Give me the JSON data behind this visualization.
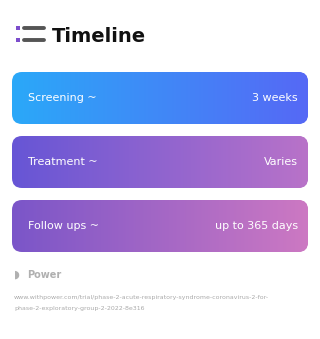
{
  "title": "Timeline",
  "background_color": "#ffffff",
  "rows": [
    {
      "left_label": "Screening ~",
      "right_label": "3 weeks",
      "color_left": "#2aa8f8",
      "color_right": "#5568f5"
    },
    {
      "left_label": "Treatment ~",
      "right_label": "Varies",
      "color_left": "#6655d5",
      "color_right": "#b872c8"
    },
    {
      "left_label": "Follow ups ~",
      "right_label": "up to 365 days",
      "color_left": "#7a55c8",
      "color_right": "#cc78c2"
    }
  ],
  "footer_logo_text": "Power",
  "footer_url_line1": "www.withpower.com/trial/phase-2-acute-respiratory-syndrome-coronavirus-2-for-",
  "footer_url_line2": "phase-2-exploratory-group-2-2022-8e316",
  "title_fontsize": 14,
  "row_fontsize": 8,
  "footer_fontsize": 4.5,
  "icon_dot_color": "#7c4dcc",
  "icon_line_color": "#555555"
}
